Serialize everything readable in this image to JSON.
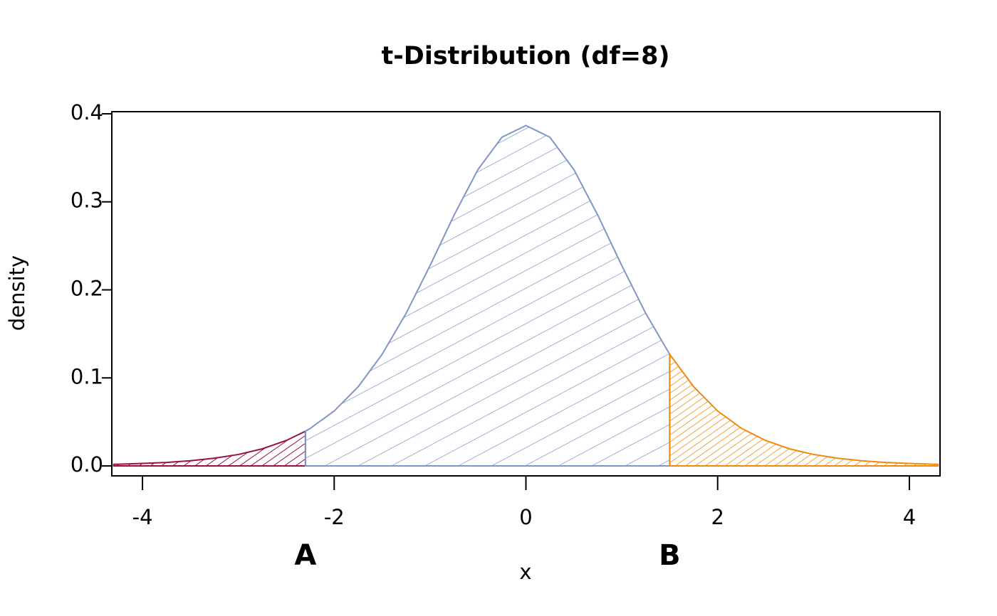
{
  "chart_data": {
    "type": "area",
    "title": "t-Distribution (df=8)",
    "x_label": "x",
    "y_label": "density",
    "xlim": [
      -4.32,
      4.32
    ],
    "ylim": [
      -0.0113,
      0.4024
    ],
    "xticks": [
      -4,
      -2,
      0,
      2,
      4
    ],
    "yticks": [
      {
        "value": 0,
        "label": "0.0"
      },
      0.1,
      0.2,
      0.3,
      0.4
    ],
    "series": [
      {
        "color": "#990f46",
        "x": [
          -4.3,
          -4.25,
          -4,
          -3.75,
          -3.5,
          -3.25,
          -3,
          -2.75,
          -2.5,
          -2.3
        ],
        "values": [
          0.0018,
          0.0019,
          0.0028,
          0.004,
          0.0059,
          0.0088,
          0.013,
          0.0194,
          0.0289,
          0.0394
        ]
      },
      {
        "color": "#7f96c4",
        "x": [
          -2.3,
          -2.25,
          -2,
          -1.75,
          -1.5,
          -1.25,
          -1,
          -0.75,
          -0.5,
          -0.25,
          0,
          0.25,
          0.5,
          0.75,
          1,
          1.25,
          1.5
        ],
        "values": [
          0.0394,
          0.0426,
          0.0624,
          0.0899,
          0.1268,
          0.1733,
          0.2276,
          0.2848,
          0.3367,
          0.3734,
          0.3867,
          0.3734,
          0.3367,
          0.2848,
          0.2276,
          0.1733,
          0.1268
        ]
      },
      {
        "color": "#f08a0c",
        "x": [
          1.5,
          1.75,
          2,
          2.25,
          2.5,
          2.75,
          3,
          3.25,
          3.5,
          3.75,
          4,
          4.25,
          4.3
        ],
        "values": [
          0.1268,
          0.0899,
          0.0624,
          0.0426,
          0.0289,
          0.0194,
          0.013,
          0.0088,
          0.0059,
          0.004,
          0.0028,
          0.0019,
          0.0018
        ]
      }
    ],
    "annotations": [
      {
        "text": "A",
        "x": -2.3
      },
      {
        "text": "B",
        "x": 1.5
      }
    ]
  }
}
